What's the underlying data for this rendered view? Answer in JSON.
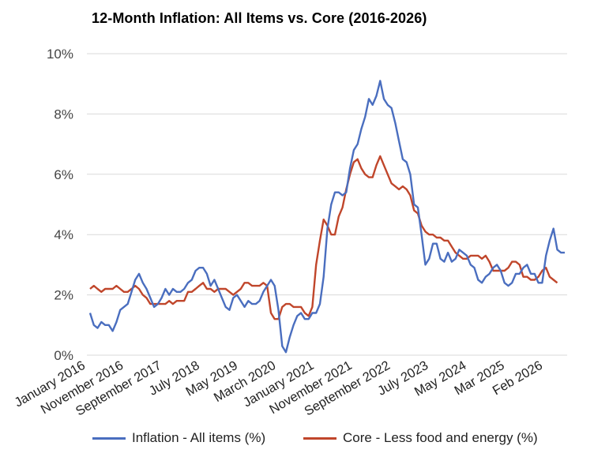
{
  "chart_data": {
    "type": "line",
    "title": "12-Month Inflation: All Items vs. Core (2016-2026)",
    "ylim": [
      0,
      10
    ],
    "yticks": [
      "0%",
      "2%",
      "4%",
      "6%",
      "8%",
      "10%"
    ],
    "xticks": [
      "January 2016",
      "November 2016",
      "September 2017",
      "July 2018",
      "May 2019",
      "March 2020",
      "January 2021",
      "November 2021",
      "September 2022",
      "July 2023",
      "May 2024",
      "Mar 2025",
      "Feb 2026"
    ],
    "grid": true,
    "legend": "bottom",
    "series": [
      {
        "name": "Inflation - All items (%)",
        "color": "#4a6ebf",
        "values": [
          1.4,
          1.0,
          0.9,
          1.1,
          1.0,
          1.0,
          0.8,
          1.1,
          1.5,
          1.6,
          1.7,
          2.1,
          2.5,
          2.7,
          2.4,
          2.2,
          1.9,
          1.6,
          1.7,
          1.9,
          2.2,
          2.0,
          2.2,
          2.1,
          2.1,
          2.2,
          2.4,
          2.5,
          2.8,
          2.9,
          2.9,
          2.7,
          2.3,
          2.5,
          2.2,
          1.9,
          1.6,
          1.5,
          1.9,
          2.0,
          1.8,
          1.6,
          1.8,
          1.7,
          1.7,
          1.8,
          2.1,
          2.3,
          2.5,
          2.3,
          1.5,
          0.3,
          0.1,
          0.6,
          1.0,
          1.3,
          1.4,
          1.2,
          1.2,
          1.4,
          1.4,
          1.7,
          2.6,
          4.2,
          5.0,
          5.4,
          5.4,
          5.3,
          5.4,
          6.2,
          6.8,
          7.0,
          7.5,
          7.9,
          8.5,
          8.3,
          8.6,
          9.1,
          8.5,
          8.3,
          8.2,
          7.7,
          7.1,
          6.5,
          6.4,
          6.0,
          5.0,
          4.9,
          4.0,
          3.0,
          3.2,
          3.7,
          3.7,
          3.2,
          3.1,
          3.4,
          3.1,
          3.2,
          3.5,
          3.4,
          3.3,
          3.0,
          2.9,
          2.5,
          2.4,
          2.6,
          2.7,
          2.9,
          3.0,
          2.8,
          2.4,
          2.3,
          2.4,
          2.7,
          2.7,
          2.9,
          3.0,
          2.7,
          2.7,
          2.4,
          2.4,
          3.3,
          3.8,
          4.2,
          3.5,
          3.4,
          3.4
        ],
        "data_label_note": ""
      },
      {
        "name": "Core - Less food and energy (%)",
        "color": "#c0462b",
        "values": [
          2.2,
          2.3,
          2.2,
          2.1,
          2.2,
          2.2,
          2.2,
          2.3,
          2.2,
          2.1,
          2.1,
          2.2,
          2.3,
          2.2,
          2.0,
          1.9,
          1.7,
          1.7,
          1.7,
          1.7,
          1.7,
          1.8,
          1.7,
          1.8,
          1.8,
          1.8,
          2.1,
          2.1,
          2.2,
          2.3,
          2.4,
          2.2,
          2.2,
          2.1,
          2.2,
          2.2,
          2.2,
          2.1,
          2.0,
          2.1,
          2.2,
          2.4,
          2.4,
          2.3,
          2.3,
          2.3,
          2.4,
          2.3,
          1.4,
          1.2,
          1.2,
          1.6,
          1.7,
          1.7,
          1.6,
          1.6,
          1.6,
          1.4,
          1.3,
          1.6,
          3.0,
          3.8,
          4.5,
          4.3,
          4.0,
          4.0,
          4.6,
          4.9,
          5.5,
          6.0,
          6.4,
          6.5,
          6.2,
          6.0,
          5.9,
          5.9,
          6.3,
          6.6,
          6.3,
          6.0,
          5.7,
          5.6,
          5.5,
          5.6,
          5.5,
          5.3,
          4.8,
          4.7,
          4.3,
          4.1,
          4.0,
          4.0,
          3.9,
          3.9,
          3.8,
          3.8,
          3.6,
          3.4,
          3.3,
          3.2,
          3.2,
          3.3,
          3.3,
          3.3,
          3.2,
          3.3,
          3.1,
          2.8,
          2.8,
          2.8,
          2.8,
          2.9,
          3.1,
          3.1,
          3.0,
          2.6,
          2.6,
          2.5,
          2.5,
          2.6,
          2.8,
          2.9,
          2.6,
          2.5,
          2.4
        ]
      }
    ]
  }
}
